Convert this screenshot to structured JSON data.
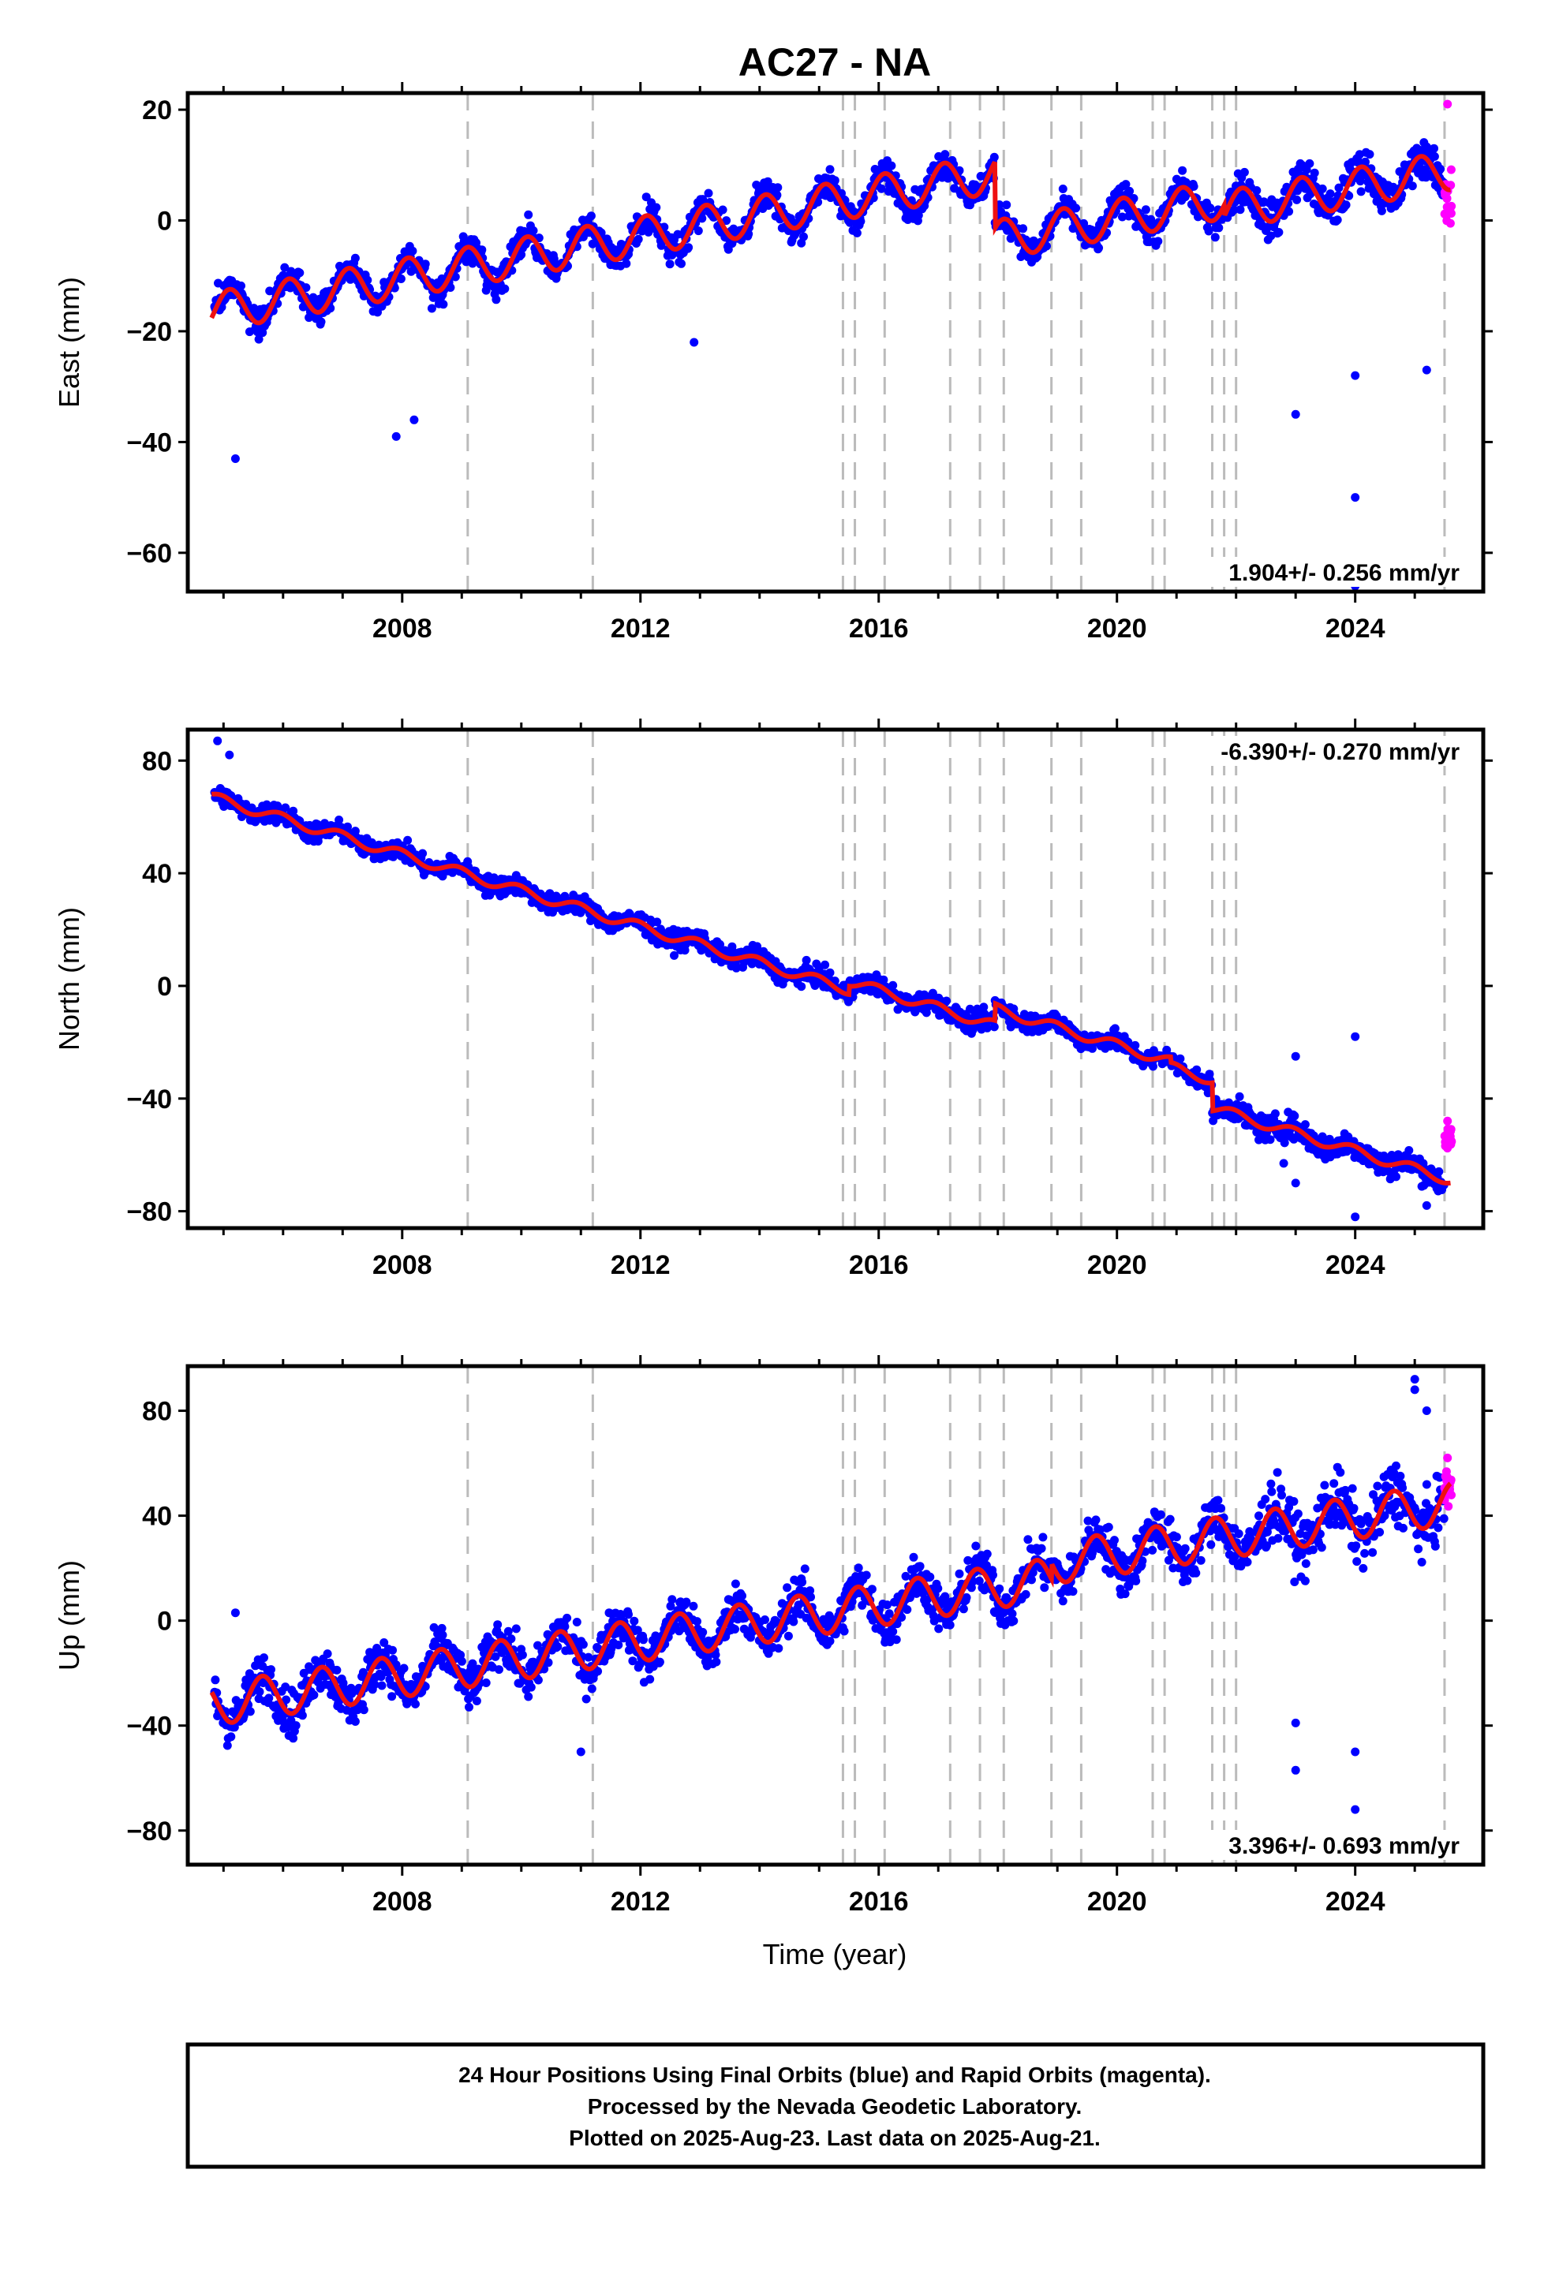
{
  "figure": {
    "title": "AC27 - NA",
    "xlabel": "Time (year)",
    "note": [
      "24 Hour Positions Using Final Orbits (blue) and Rapid Orbits (magenta).",
      "Processed by the Nevada Geodetic Laboratory.",
      "Plotted on 2025-Aug-23. Last data on 2025-Aug-21."
    ],
    "colors": {
      "final": "#0000ff",
      "rapid": "#ff00ff",
      "model": "#ee1111",
      "offset_line": "#bbbbbb",
      "axis": "#000000"
    }
  },
  "chart_data": [
    {
      "type": "scatter",
      "component": "East",
      "ylabel": "East (mm)",
      "xlim": [
        2004.4,
        2026.15
      ],
      "ylim": [
        -67,
        23
      ],
      "yticks": [
        20,
        0,
        -20,
        -40,
        -60
      ],
      "xticks": [
        2008,
        2012,
        2016,
        2020,
        2024
      ],
      "rate": "1.904+/- 0.256 mm/yr",
      "rate_position": "bottom-right",
      "model": {
        "start": 2004.8,
        "intercept": -16.5,
        "rate": 1.9,
        "amplitude": 3.5,
        "phase": 0.15,
        "steps": [
          {
            "t": 2017.95,
            "dy": -12
          },
          {
            "t": 2021.8,
            "dy": -2
          }
        ]
      },
      "scatter": 1.8,
      "outliers": [
        [
          2005.2,
          -43
        ],
        [
          2007.9,
          -39
        ],
        [
          2008.2,
          -36
        ],
        [
          2012.9,
          -22
        ],
        [
          2023.0,
          -35
        ],
        [
          2024.0,
          -28
        ],
        [
          2024.0,
          -50
        ],
        [
          2024.0,
          -66
        ],
        [
          2025.2,
          -27
        ]
      ],
      "rapid": {
        "center": 4,
        "spread": 9,
        "top": 21
      }
    },
    {
      "type": "scatter",
      "component": "North",
      "ylabel": "North (mm)",
      "xlim": [
        2004.4,
        2026.15
      ],
      "ylim": [
        -86,
        91
      ],
      "yticks": [
        80,
        40,
        0,
        -40,
        -80
      ],
      "xticks": [
        2008,
        2012,
        2016,
        2020,
        2024
      ],
      "rate": "-6.390+/- 0.270 mm/yr",
      "rate_position": "top-right",
      "model": {
        "start": 2004.8,
        "intercept": 67,
        "rate": -6.39,
        "amplitude": 1.8,
        "phase": 0.3,
        "steps": [
          {
            "t": 2015.5,
            "dy": 3
          },
          {
            "t": 2017.95,
            "dy": 6
          },
          {
            "t": 2020.9,
            "dy": -2
          },
          {
            "t": 2021.6,
            "dy": -10
          }
        ]
      },
      "scatter": 2.4,
      "outliers": [
        [
          2004.9,
          87
        ],
        [
          2005.1,
          82
        ],
        [
          2022.8,
          -63
        ],
        [
          2023.0,
          -70
        ],
        [
          2024.0,
          -82
        ],
        [
          2025.2,
          -78
        ],
        [
          2023.0,
          -25
        ],
        [
          2024.0,
          -18
        ]
      ],
      "rapid": {
        "center": -55,
        "spread": 7,
        "top": -48
      }
    },
    {
      "type": "scatter",
      "component": "Up",
      "ylabel": "Up (mm)",
      "xlim": [
        2004.4,
        2026.15
      ],
      "ylim": [
        -93,
        97
      ],
      "yticks": [
        80,
        40,
        0,
        -40,
        -80
      ],
      "xticks": [
        2008,
        2012,
        2016,
        2020,
        2024
      ],
      "rate": "3.396+/- 0.693 mm/yr",
      "rate_position": "bottom-right",
      "model": {
        "start": 2004.8,
        "intercept": -32,
        "rate": 3.396,
        "amplitude": 8,
        "phase": 0.6,
        "steps": [
          {
            "t": 2018.9,
            "dy": 6
          }
        ]
      },
      "scatter": 6,
      "outliers": [
        [
          2005.2,
          3
        ],
        [
          2011.0,
          -50
        ],
        [
          2023.0,
          -39
        ],
        [
          2023.0,
          -57
        ],
        [
          2024.0,
          -50
        ],
        [
          2024.0,
          -72
        ],
        [
          2025.0,
          92
        ],
        [
          2025.0,
          88
        ],
        [
          2025.2,
          80
        ]
      ],
      "rapid": {
        "center": 50,
        "spread": 10,
        "top": 62
      }
    }
  ],
  "offset_epochs": [
    2009.1,
    2011.2,
    2015.4,
    2015.6,
    2016.1,
    2017.2,
    2017.7,
    2018.1,
    2018.9,
    2019.4,
    2020.6,
    2020.8,
    2021.6,
    2021.8,
    2022.0,
    2025.5
  ]
}
